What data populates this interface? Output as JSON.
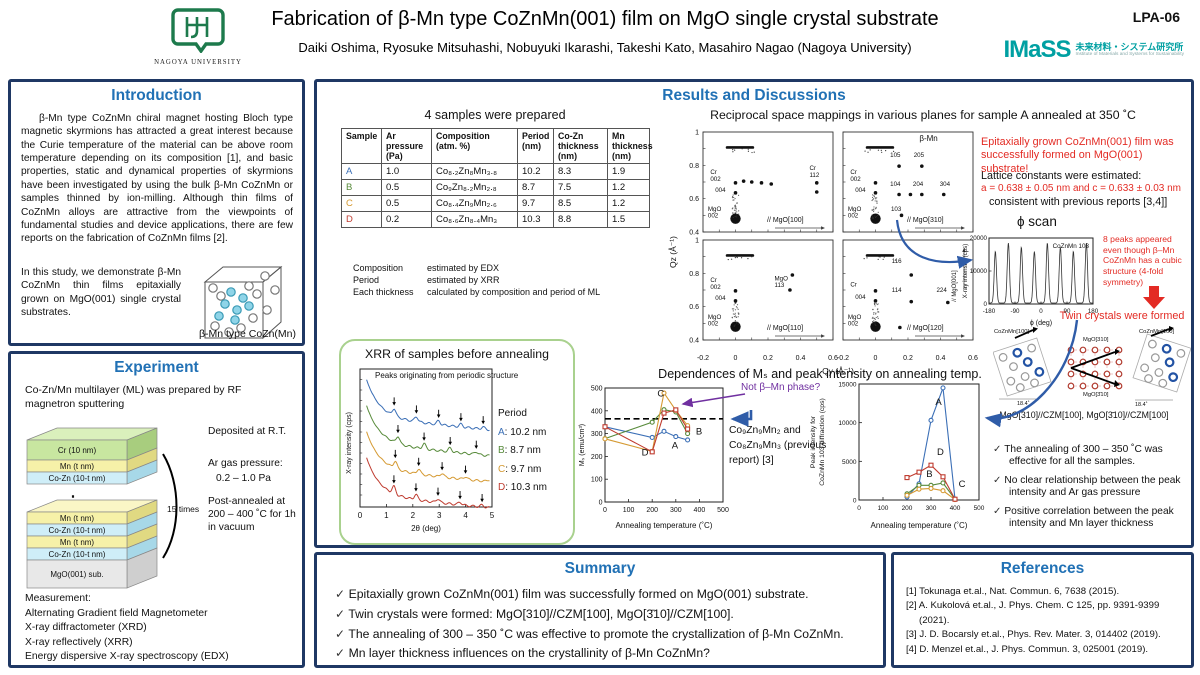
{
  "colors": {
    "border_navy": "#1f3864",
    "accent_blue": "#2171b5",
    "red": "#e32b24",
    "purple": "#7030a0",
    "teal": "#00a0a2",
    "green_box": "#a9d18e",
    "sample_A": "#3b6fb6",
    "sample_B": "#578a3a",
    "sample_C": "#d59a33",
    "sample_D": "#bf3b2f"
  },
  "header": {
    "title": "Fabrication of β-Mn type CoZnMn(001) film on MgO single crystal substrate",
    "authors": "Daiki Oshima, Ryosuke Mitsuhashi, Nobuyuki Ikarashi, Takeshi Kato, Masahiro Nagao (Nagoya University)",
    "poster_id": "LPA-06",
    "nagoya_logo_text": "NAGOYA UNIVERSITY",
    "imass_logo": "IMaSS",
    "imass_jp": "未来材料・システム研究所",
    "imass_en": "Institute of Materials and Systems for Sustainability"
  },
  "intro": {
    "title": "Introduction",
    "p1": "β-Mn type CoZnMn chiral magnet hosting Bloch type magnetic skyrmions has attracted a great interest because the Curie temperature of the material can be above room temperature depending on its composition [1], and basic properties, static and dynamical properties of skyrmions have been investigated by using the bulk β-Mn CoZnMn or samples thinned by ion-milling. Although thin films of CoZnMn alloys are attractive from the viewpoints of fundamental studies and device applications, there are few reports on the fabrication of CoZnMn films [2].",
    "p2": "In this study, we demonstrate β-Mn CoZnMn thin films epitaxially grown on MgO(001) single crystal substrates.",
    "cube_caption": "β-Mn type CoZn(Mn)"
  },
  "experiment": {
    "title": "Experiment",
    "intro": "Co-Zn/Mn multilayer (ML) was prepared by RF magnetron sputtering",
    "layers_top": [
      "Cr (10 nm)",
      "Mn (t nm)",
      "Co-Zn (10-t nm)"
    ],
    "layers_bottom": [
      "Mn (t nm)",
      "Co-Zn (10-t nm)",
      "Mn (t nm)",
      "Co-Zn (10-t nm)"
    ],
    "substrate": "MgO(001) sub.",
    "repeat": "15 times",
    "deposited": "Deposited at R.T.",
    "ar_label": "Ar gas pressure:",
    "ar_value": "0.2 – 1.0 Pa",
    "anneal": "Post-annealed at 200 – 400 ˚C for 1h in vacuum",
    "measurement_title": "Measurement:",
    "measurements": [
      "Alternating Gradient field Magnetometer",
      "X-ray diffractometer (XRD)",
      "X-ray reflectively (XRR)",
      "Energy dispersive X-ray spectroscopy (EDX)"
    ]
  },
  "results": {
    "title": "Results and Discussions",
    "samples_heading": "4 samples were prepared",
    "table": {
      "headers": [
        "Sample",
        "Ar pressure (Pa)",
        "Composition (atm. %)",
        "Period (nm)",
        "Co-Zn thickness (nm)",
        "Mn thickness (nm)"
      ],
      "rows": [
        {
          "sample": "A",
          "ar": "1.0",
          "comp": "Co₈.₂Zn₈Mn₃.₈",
          "period": "10.2",
          "cozn": "8.3",
          "mn": "1.9"
        },
        {
          "sample": "B",
          "ar": "0.5",
          "comp": "Co₉Zn₈.₂Mn₂.₈",
          "period": "8.7",
          "cozn": "7.5",
          "mn": "1.2"
        },
        {
          "sample": "C",
          "ar": "0.5",
          "comp": "Co₈.₄Zn₉Mn₂.₆",
          "period": "9.7",
          "cozn": "8.5",
          "mn": "1.2"
        },
        {
          "sample": "D",
          "ar": "0.2",
          "comp": "Co₈.₆Zn₈.₄Mn₃",
          "period": "10.3",
          "cozn": "8.8",
          "mn": "1.5"
        }
      ]
    },
    "table_notes": [
      [
        "Composition",
        "estimated by EDX"
      ],
      [
        "Period",
        "estimated by XRR"
      ],
      [
        "Each thickness",
        "calculated by composition and period of ML"
      ]
    ],
    "claim": "Epitaxially grown CoZnMn(001) film was successfully formed on MgO(001) substrate!",
    "lattice1": "Lattice constants were estimated:",
    "lattice2": "a = 0.638 ± 0.05 nm and c = 0.633 ± 0.03 nm",
    "lattice3": "consistent with previous reports [3,4]]",
    "eight_peaks": "8 peaks appeared even though β–Mn CoZnMn has a cubic structure (4-fold symmetry)",
    "twin": "Twin crystals were formed",
    "twin_labels": {
      "left": "CoZnMn[100]",
      "mid_top": "MgO[310]",
      "mid_bottom": "MgO[3̄10]",
      "right": "CoZnMn[100]",
      "angle": "18.4˚"
    },
    "twin_caption": "MgO[310]//CZM[100], MgO[3̄10]//CZM[100]",
    "not_bmn": "Not β–Mn phase?",
    "prev_report": "Co₉Zn₉Mn₂ and Co₈Zn₉Mn₃ (previous report) [3]",
    "checks": [
      "The annealing of 300 – 350 ˚C was effective for all the samples.",
      "No clear relationship between the peak intensity and Ar gas pressure",
      "Positive correlation between the peak intensity and Mn layer thickness"
    ]
  },
  "summary": {
    "title": "Summary",
    "items": [
      "Epitaxially grown CoZnMn(001) film was successfully formed on MgO(001) substrate.",
      "Twin crystals were formed: MgO[310]//CZM[100], MgO[3̄10]//CZM[100].",
      "The annealing of 300 – 350 ˚C was effective to promote the crystallization of β-Mn CoZnMn.",
      "Mn layer thickness influences on the crystallinity of β-Mn CoZnMn?"
    ]
  },
  "references": {
    "title": "References",
    "items": [
      "[1] Tokunaga et.al., Nat. Commun. 6, 7638 (2015).",
      "[2] A. Kukolová et.al., J. Phys. Chem. C 125, pp. 9391-9399 (2021).",
      "[3] J. D. Bocarsly et.al., Phys. Rev. Mater. 3, 014402 (2019).",
      "[4] D. Menzel et.al., J. Phys. Commun. 3, 025001 (2019)."
    ]
  },
  "chart_data": [
    {
      "id": "xrr",
      "type": "line",
      "title": "XRR of samples before annealing",
      "annotation": "Peaks originating from periodic structure",
      "xlabel": "2θ (deg)",
      "ylabel": "X-ray intensity (cps)",
      "xlim": [
        0,
        5
      ],
      "xticks": [
        0,
        1,
        2,
        3,
        4,
        5
      ],
      "yscale": "log, unlabeled",
      "legend_title": "Period",
      "series": [
        {
          "name": "A",
          "period_nm": 10.2,
          "legend_suffix": ": 10.2 nm"
        },
        {
          "name": "B",
          "period_nm": 8.7,
          "legend_suffix": ": 8.7 nm"
        },
        {
          "name": "C",
          "period_nm": 9.7,
          "legend_suffix": ": 9.7 nm"
        },
        {
          "name": "D",
          "period_nm": 10.3,
          "legend_suffix": ": 10.3 nm"
        }
      ]
    },
    {
      "id": "rsm",
      "type": "scatter",
      "title": "Reciprocal space mappings in various planes for sample A annealed at 350 ˚C",
      "xlabel": "Qy (Å⁻¹)",
      "ylabel": "Qz (Å⁻¹)",
      "xlim": [
        -0.2,
        0.6
      ],
      "ylim": [
        0.4,
        1.0
      ],
      "xticks": [
        "-0.2",
        "0",
        "0.2",
        "0.4",
        "0.6"
      ],
      "yticks": [
        "1",
        "0.8",
        "0.6",
        "0.4"
      ],
      "panels": [
        {
          "direction": "// MgO[100]",
          "labels": [
            {
              "t": "Cr",
              "x": -0.155,
              "y": 0.748,
              "c": "b"
            },
            {
              "t": "002",
              "x": -0.155,
              "y": 0.706,
              "c": "b"
            },
            {
              "t": "004",
              "x": -0.125,
              "y": 0.64,
              "c": "r"
            },
            {
              "t": "MgO",
              "x": -0.17,
              "y": 0.527,
              "c": "g"
            },
            {
              "t": "002",
              "x": -0.17,
              "y": 0.487,
              "c": "g"
            },
            {
              "t": "Cr",
              "x": 0.455,
              "y": 0.772,
              "c": "b"
            },
            {
              "t": "112",
              "x": 0.455,
              "y": 0.73,
              "c": "b"
            }
          ],
          "points": [
            [
              0,
              0.695
            ],
            [
              0,
              0.635
            ],
            [
              0.5,
              0.695
            ],
            [
              0.5,
              0.64
            ],
            [
              0.05,
              0.705
            ],
            [
              0.1,
              0.7
            ],
            [
              0.16,
              0.695
            ],
            [
              0.22,
              0.688
            ]
          ]
        },
        {
          "direction": "// MgO[310]",
          "tag": "β-Mn",
          "labels": [
            {
              "t": "Cr",
              "x": -0.155,
              "y": 0.748,
              "c": "b"
            },
            {
              "t": "002",
              "x": -0.155,
              "y": 0.706,
              "c": "b"
            },
            {
              "t": "004",
              "x": -0.125,
              "y": 0.64,
              "c": "r"
            },
            {
              "t": "MgO",
              "x": -0.17,
              "y": 0.527,
              "c": "g"
            },
            {
              "t": "002",
              "x": -0.17,
              "y": 0.487,
              "c": "g"
            },
            {
              "t": "105",
              "x": 0.09,
              "y": 0.85,
              "c": "r"
            },
            {
              "t": "205",
              "x": 0.235,
              "y": 0.85,
              "c": "r"
            },
            {
              "t": "104",
              "x": 0.09,
              "y": 0.676,
              "c": "r"
            },
            {
              "t": "204",
              "x": 0.23,
              "y": 0.676,
              "c": "r"
            },
            {
              "t": "304",
              "x": 0.395,
              "y": 0.676,
              "c": "r"
            },
            {
              "t": "103",
              "x": 0.095,
              "y": 0.527,
              "c": "r"
            }
          ],
          "points": [
            [
              0,
              0.695
            ],
            [
              0,
              0.635
            ],
            [
              0.145,
              0.795
            ],
            [
              0.285,
              0.795
            ],
            [
              0.145,
              0.625
            ],
            [
              0.215,
              0.625
            ],
            [
              0.285,
              0.625
            ],
            [
              0.42,
              0.625
            ],
            [
              0.16,
              0.5
            ]
          ]
        },
        {
          "direction": "// MgO[110]",
          "labels": [
            {
              "t": "Cr",
              "x": -0.155,
              "y": 0.748,
              "c": "b"
            },
            {
              "t": "002",
              "x": -0.155,
              "y": 0.706,
              "c": "b"
            },
            {
              "t": "004",
              "x": -0.125,
              "y": 0.64,
              "c": "r"
            },
            {
              "t": "MgO",
              "x": -0.17,
              "y": 0.527,
              "c": "g"
            },
            {
              "t": "002",
              "x": -0.17,
              "y": 0.487,
              "c": "g"
            },
            {
              "t": "MgO",
              "x": 0.24,
              "y": 0.757,
              "c": "k"
            },
            {
              "t": "113",
              "x": 0.24,
              "y": 0.717,
              "c": "k"
            }
          ],
          "points": [
            [
              0,
              0.695
            ],
            [
              0,
              0.635
            ],
            [
              0.35,
              0.79
            ],
            [
              0.335,
              0.7
            ]
          ]
        },
        {
          "direction": "// MgO[120]",
          "vertical": "// MgO[001]",
          "labels": [
            {
              "t": "Cr",
              "x": -0.155,
              "y": 0.722,
              "c": "b"
            },
            {
              "t": "004",
              "x": -0.125,
              "y": 0.645,
              "c": "r"
            },
            {
              "t": "MgO",
              "x": -0.17,
              "y": 0.527,
              "c": "g"
            },
            {
              "t": "002",
              "x": -0.17,
              "y": 0.487,
              "c": "g"
            },
            {
              "t": "116",
              "x": 0.1,
              "y": 0.862,
              "c": "r"
            },
            {
              "t": "114",
              "x": 0.1,
              "y": 0.688,
              "c": "r"
            },
            {
              "t": "224",
              "x": 0.375,
              "y": 0.688,
              "c": "r"
            }
          ],
          "points": [
            [
              0,
              0.695
            ],
            [
              0,
              0.635
            ],
            [
              0.22,
              0.79
            ],
            [
              0.22,
              0.63
            ],
            [
              0.445,
              0.625
            ],
            [
              0.15,
              0.475
            ]
          ]
        }
      ]
    },
    {
      "id": "phi_scan",
      "type": "line",
      "title": "ϕ scan",
      "label": "CoZnMn 103",
      "xlabel": "ϕ (deg)",
      "ylabel": "X-ray intensity (cps)",
      "xlim": [
        -180,
        180
      ],
      "xticks": [
        -180,
        -90,
        0,
        90,
        180
      ],
      "ylim": [
        0,
        20000
      ],
      "yticks": [
        0,
        10000,
        20000
      ],
      "n_peaks": 8,
      "peak_centers_deg": [
        -158,
        -113,
        -68,
        -23,
        22,
        67,
        112,
        157
      ],
      "peak_height_cps": 18000
    },
    {
      "id": "ms_vs_annealing",
      "type": "line",
      "title": "Dependences of Mₛ and peak intensity on annealing temp.",
      "xlabel": "Annealing temperature (˚C)",
      "ylabel": "Mₛ (emu/cm³)",
      "xlim": [
        0,
        500
      ],
      "ylim": [
        0,
        500
      ],
      "xticks": [
        0,
        100,
        200,
        300,
        400,
        500
      ],
      "yticks": [
        0,
        100,
        200,
        300,
        400,
        500
      ],
      "dashed_reference_y": 365,
      "series": [
        {
          "name": "A",
          "marker": "circle",
          "values": [
            [
              0,
              330
            ],
            [
              200,
              283
            ],
            [
              250,
              310
            ],
            [
              300,
              287
            ],
            [
              350,
              272
            ]
          ],
          "label_pos": [
            283,
            235
          ]
        },
        {
          "name": "B",
          "marker": "circle",
          "values": [
            [
              0,
              278
            ],
            [
              200,
              350
            ],
            [
              250,
              405
            ],
            [
              300,
              395
            ],
            [
              350,
              300
            ]
          ],
          "label_pos": [
            385,
            295
          ]
        },
        {
          "name": "C",
          "marker": "circle",
          "values": [
            [
              0,
              277
            ],
            [
              200,
              222
            ],
            [
              250,
              478
            ],
            [
              300,
              402
            ],
            [
              350,
              335
            ]
          ],
          "label_pos": [
            222,
            462
          ]
        },
        {
          "name": "D",
          "marker": "square",
          "values": [
            [
              0,
              330
            ],
            [
              200,
              220
            ],
            [
              250,
              390
            ],
            [
              300,
              404
            ],
            [
              350,
              320
            ]
          ],
          "label_pos": [
            155,
            205
          ]
        }
      ]
    },
    {
      "id": "peak_intensity_vs_annealing",
      "type": "line",
      "xlabel": "Annealing temperature (˚C)",
      "ylabel": "Peak intensity for CoZnMn 103 diffraction (cps)",
      "xlim": [
        0,
        500
      ],
      "ylim": [
        0,
        15000
      ],
      "xticks": [
        0,
        100,
        200,
        300,
        400,
        500
      ],
      "yticks": [
        0,
        5000,
        10000,
        15000
      ],
      "series": [
        {
          "name": "A",
          "marker": "circle",
          "values": [
            [
              200,
              400
            ],
            [
              250,
              2100
            ],
            [
              300,
              10300
            ],
            [
              350,
              14500
            ],
            [
              400,
              100
            ]
          ],
          "label_pos": [
            318,
            12300
          ]
        },
        {
          "name": "B",
          "marker": "circle",
          "values": [
            [
              200,
              800
            ],
            [
              250,
              1900
            ],
            [
              300,
              1900
            ],
            [
              350,
              2200
            ],
            [
              400,
              100
            ]
          ],
          "label_pos": [
            280,
            2950
          ]
        },
        {
          "name": "C",
          "marker": "circle",
          "values": [
            [
              200,
              600
            ],
            [
              250,
              1400
            ],
            [
              300,
              1500
            ],
            [
              350,
              1200
            ],
            [
              400,
              60
            ]
          ],
          "label_pos": [
            415,
            1700
          ]
        },
        {
          "name": "D",
          "marker": "square",
          "values": [
            [
              200,
              2900
            ],
            [
              250,
              3600
            ],
            [
              300,
              4500
            ],
            [
              350,
              3000
            ],
            [
              400,
              100
            ]
          ],
          "label_pos": [
            325,
            5800
          ]
        }
      ]
    }
  ]
}
